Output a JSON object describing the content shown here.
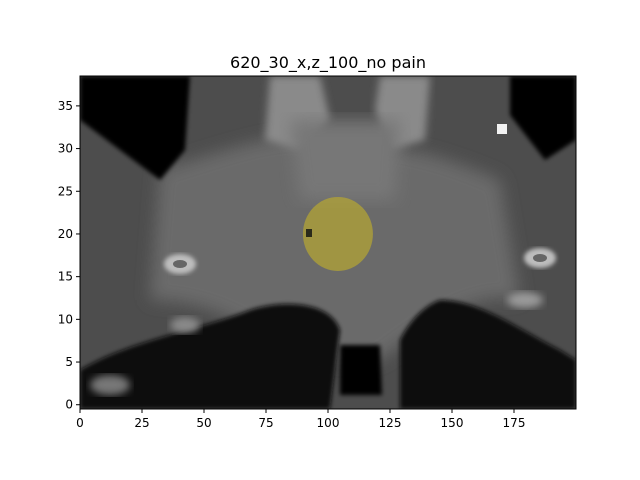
{
  "title": "620_30_x,z_100_no pain",
  "axes": {
    "x_range": [
      0,
      200
    ],
    "y_range": [
      -0.5,
      38.5
    ],
    "x_ticks": [
      {
        "value": 0,
        "label": "0"
      },
      {
        "value": 25,
        "label": "25"
      },
      {
        "value": 50,
        "label": "50"
      },
      {
        "value": 75,
        "label": "75"
      },
      {
        "value": 100,
        "label": "100"
      },
      {
        "value": 125,
        "label": "125"
      },
      {
        "value": 150,
        "label": "150"
      },
      {
        "value": 175,
        "label": "175"
      }
    ],
    "y_ticks": [
      {
        "value": 0,
        "label": "0"
      },
      {
        "value": 5,
        "label": "5"
      },
      {
        "value": 10,
        "label": "10"
      },
      {
        "value": 15,
        "label": "15"
      },
      {
        "value": 20,
        "label": "20"
      },
      {
        "value": 25,
        "label": "25"
      },
      {
        "value": 30,
        "label": "30"
      },
      {
        "value": 35,
        "label": "35"
      }
    ]
  },
  "overlay": {
    "center": [
      104,
      20
    ],
    "radius_x": 14,
    "radius_y": 4.5,
    "color": "#a89a2a"
  },
  "colors": {
    "overlay": "#b3a436",
    "image_base": "#4a4a4a"
  }
}
